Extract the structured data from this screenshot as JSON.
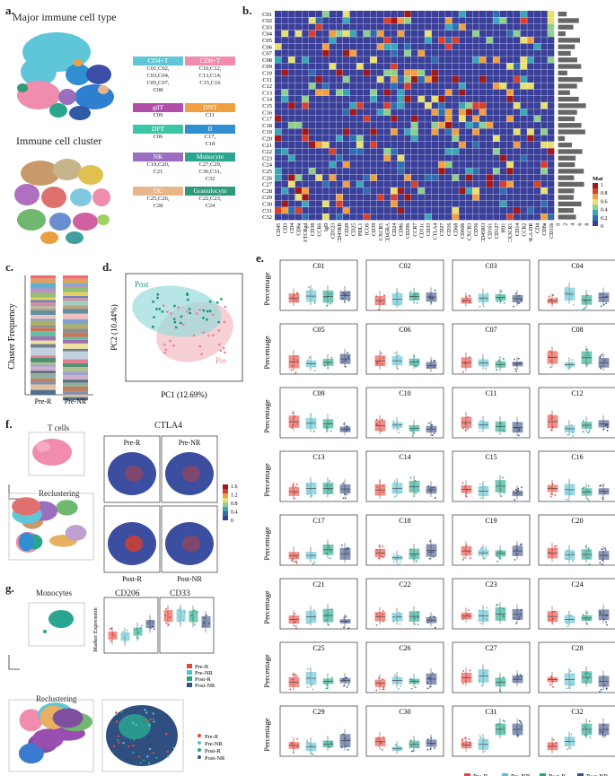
{
  "panels": {
    "a": "a.",
    "b": "b.",
    "c": "c.",
    "d": "d.",
    "e": "e.",
    "f": "f.",
    "g": "g."
  },
  "a": {
    "title1": "Major immune cell type",
    "title2": "Immune cell cluster",
    "types": [
      {
        "name": "CD4+T",
        "clusters": "C01,C02,\nC03,C04,\nC05,C07,\nC08",
        "color": "#5ec6d8"
      },
      {
        "name": "CD8+T",
        "clusters": "C10,C12,\nC13,C14,\nC15,C16",
        "color": "#f08cad"
      },
      {
        "name": "gdT",
        "clusters": "C09",
        "color": "#b04fa8"
      },
      {
        "name": "DNT",
        "clusters": "C11",
        "color": "#f0a040"
      },
      {
        "name": "DPT",
        "clusters": "C06",
        "color": "#3cc6a6"
      },
      {
        "name": "B",
        "clusters": "C17,\nC18",
        "color": "#2f8fd0"
      },
      {
        "name": "NK",
        "clusters": "C19,C20,\nC21",
        "color": "#9a6fbf"
      },
      {
        "name": "Monocyte",
        "clusters": "C27,C29,\nC30,C31,\nC32",
        "color": "#2aa58f"
      },
      {
        "name": "DC",
        "clusters": "C25,C26,\nC28",
        "color": "#e8b68a"
      },
      {
        "name": "Granulocyte",
        "clusters": "C22,C23,\nC24",
        "color": "#2e9a7a"
      }
    ]
  },
  "b": {
    "rows": [
      "C01",
      "C02",
      "C03",
      "C04",
      "C05",
      "C06",
      "C07",
      "C08",
      "C09",
      "C10",
      "C11",
      "C12",
      "C13",
      "C14",
      "C15",
      "C16",
      "C17",
      "C18",
      "C19",
      "C20",
      "C21",
      "C22",
      "C23",
      "C24",
      "C25",
      "C26",
      "C27",
      "C28",
      "C29",
      "C30",
      "C31",
      "C32"
    ],
    "markers": [
      "CD45",
      "CD3",
      "CD4",
      "CD8a",
      "CD19/TCRgd",
      "CD38",
      "CCR6",
      "IgD",
      "CD123",
      "CD45RB",
      "CD28",
      "CD25",
      "PDL1",
      "ICOS",
      "CD39",
      "CXCR5",
      "CD45RA",
      "CD24",
      "CD86",
      "CD206",
      "CCR7",
      "CD11c",
      "CD33",
      "CTLA4",
      "CD27",
      "CD16",
      "CD68",
      "CD66b",
      "CXCR3",
      "CD56",
      "CD45RO",
      "CD161",
      "CD127",
      "PD1",
      "CX3CR1",
      "CD14",
      "CCR2",
      "HLA-DR",
      "CD4",
      "CD8a",
      "CD11b"
    ],
    "bar_ticks": [
      "0",
      "2",
      "4",
      "6",
      "8"
    ],
    "legend_title": "Mat",
    "legend_ticks": [
      "1",
      "0.8",
      "0.6",
      "0.4",
      "0.2",
      "0"
    ]
  },
  "c": {
    "ylabel": "Cluster Frequency",
    "groups": [
      "Pre-R",
      "Pre-NR"
    ]
  },
  "d": {
    "xlabel": "PC1 (12.69%)",
    "ylabel": "PC2 (10.44%)",
    "label_post": "Post",
    "label_pre": "Pre"
  },
  "e": {
    "ylabel": "Percentage",
    "clusters": [
      "C01",
      "C02",
      "C03",
      "C04",
      "C05",
      "C06",
      "C07",
      "C08",
      "C09",
      "C10",
      "C11",
      "C12",
      "C13",
      "C14",
      "C15",
      "C16",
      "C17",
      "C18",
      "C19",
      "C20",
      "C21",
      "C22",
      "C23",
      "C24",
      "C25",
      "C26",
      "C27",
      "C28",
      "C29",
      "C30",
      "C31",
      "C32"
    ],
    "legend": [
      {
        "name": "Pre-R",
        "color": "#e8463c"
      },
      {
        "name": "Pre-NR",
        "color": "#5bbfd0"
      },
      {
        "name": "Post-R",
        "color": "#22a38a"
      },
      {
        "name": "Post-NR",
        "color": "#3a4f85"
      }
    ]
  },
  "f": {
    "title_t": "T cells",
    "title_recl": "Reclustering",
    "title_gene": "CTLA4",
    "quads": [
      "Pre-R",
      "Pre-NR",
      "Post-R",
      "Post-NR"
    ],
    "scale_ticks": [
      "1.6",
      "1.2",
      "0.8",
      "0.4",
      "0"
    ]
  },
  "g": {
    "title_mono": "Monocytes",
    "title_recl": "Reclustering",
    "gene1": "CD206",
    "gene2": "CD33",
    "ylabel": "Marker Expression",
    "legend": [
      {
        "name": "Pre-R",
        "color": "#e8463c"
      },
      {
        "name": "Pre-NR",
        "color": "#5bbfd0"
      },
      {
        "name": "Post-R",
        "color": "#22a38a"
      },
      {
        "name": "Post-NR",
        "color": "#3a4f85"
      }
    ]
  }
}
